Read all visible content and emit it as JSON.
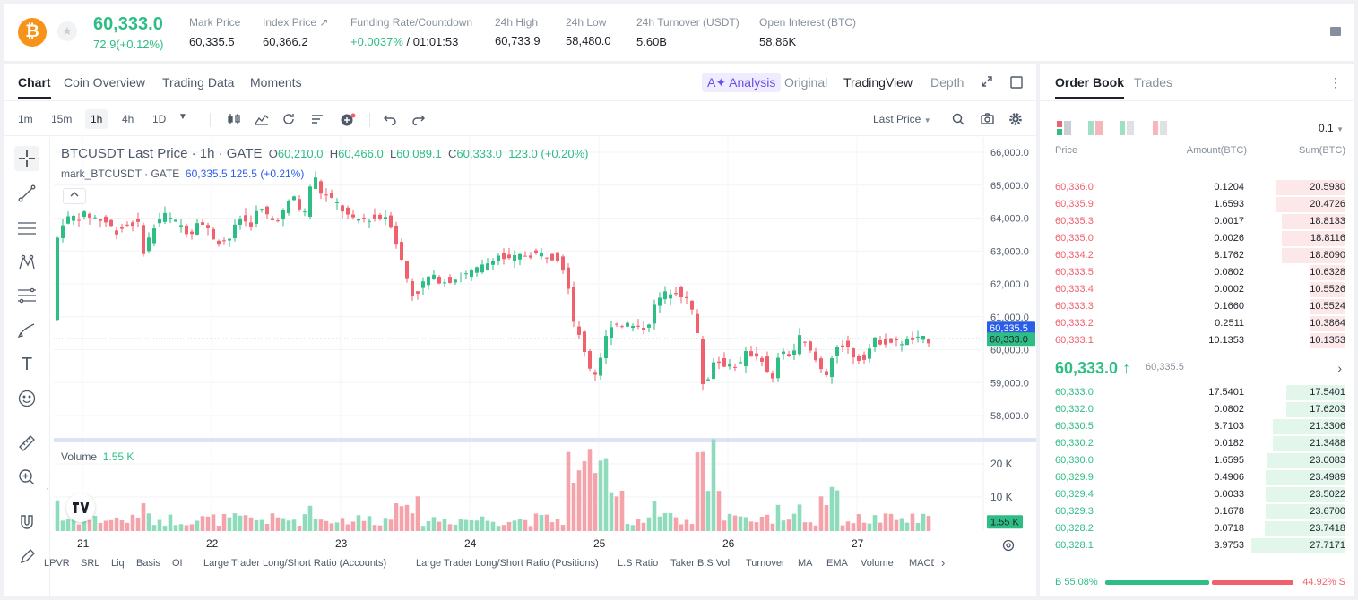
{
  "header": {
    "coin_symbol": "₿",
    "last_price": "60,333.0",
    "change": "72.9(+0.12%)",
    "stats": [
      {
        "label": "Mark Price",
        "value": "60,335.5"
      },
      {
        "label": "Index Price ↗",
        "value": "60,366.2"
      },
      {
        "label": "Funding Rate/Countdown",
        "value_green": "+0.0037%",
        "value": " / 01:01:53"
      },
      {
        "label": "24h High",
        "value": "60,733.9"
      },
      {
        "label": "24h Low",
        "value": "58,480.0"
      },
      {
        "label": "24h Turnover (USDT)",
        "value": "5.60B"
      },
      {
        "label": "Open Interest (BTC)",
        "value": "58.86K"
      }
    ]
  },
  "chart_tabs": [
    "Chart",
    "Coin Overview",
    "Trading Data",
    "Moments"
  ],
  "view_tabs": {
    "ai": "A✦ Analysis",
    "original": "Original",
    "tradingview": "TradingView",
    "depth": "Depth"
  },
  "intervals": [
    "1m",
    "15m",
    "1h",
    "4h",
    "1D"
  ],
  "price_type": "Last Price",
  "legend": {
    "title": "BTCUSDT Last Price · 1h · GATE",
    "o_lbl": "O",
    "o": "60,210.0",
    "h_lbl": "H",
    "h": "60,466.0",
    "l_lbl": "L",
    "l": "60,089.1",
    "c_lbl": "C",
    "c": "60,333.0",
    "chg": "123.0 (+0.20%)",
    "mark_name": "mark_BTCUSDT · GATE",
    "mark_val": "60,335.5  125.5 (+0.21%)"
  },
  "volume_legend": {
    "label": "Volume",
    "value": "1.55 K"
  },
  "price_axis": [
    "66,000.0",
    "65,000.0",
    "64,000.0",
    "63,000.0",
    "62,000.0",
    "61,000.0",
    "60,000.0",
    "59,000.0",
    "58,000.0"
  ],
  "price_tags": {
    "mark": "60,335.5",
    "last": "60,333.0",
    "volume": "1.55 K"
  },
  "volume_axis": [
    "20 K",
    "10 K"
  ],
  "date_axis": [
    "21",
    "22",
    "23",
    "24",
    "25",
    "26",
    "27"
  ],
  "indicators": [
    "LPVR",
    "SRL",
    "Liq",
    "Basis",
    "OI",
    "Large Trader Long/Short Ratio (Accounts)",
    "Large Trader Long/Short Ratio (Positions)",
    "L.S Ratio",
    "Taker B.S Vol.",
    "Turnover",
    "MA",
    "EMA",
    "Volume",
    "MACD"
  ],
  "orderbook": {
    "tabs": [
      "Order Book",
      "Trades"
    ],
    "precision": "0.1",
    "headers": [
      "Price",
      "Amount(BTC)",
      "Sum(BTC)"
    ],
    "asks": [
      {
        "price": "60,336.0",
        "amount": "0.1204",
        "sum": "20.5930",
        "depth": 0.74
      },
      {
        "price": "60,335.9",
        "amount": "1.6593",
        "sum": "20.4726",
        "depth": 0.74
      },
      {
        "price": "60,335.3",
        "amount": "0.0017",
        "sum": "18.8133",
        "depth": 0.68
      },
      {
        "price": "60,335.0",
        "amount": "0.0026",
        "sum": "18.8116",
        "depth": 0.68
      },
      {
        "price": "60,334.2",
        "amount": "8.1762",
        "sum": "18.8090",
        "depth": 0.68
      },
      {
        "price": "60,333.5",
        "amount": "0.0802",
        "sum": "10.6328",
        "depth": 0.38
      },
      {
        "price": "60,333.4",
        "amount": "0.0002",
        "sum": "10.5526",
        "depth": 0.38
      },
      {
        "price": "60,333.3",
        "amount": "0.1660",
        "sum": "10.5524",
        "depth": 0.38
      },
      {
        "price": "60,333.2",
        "amount": "0.2511",
        "sum": "10.3864",
        "depth": 0.37
      },
      {
        "price": "60,333.1",
        "amount": "10.1353",
        "sum": "10.1353",
        "depth": 0.37
      }
    ],
    "mid_price": "60,333.0 ↑",
    "mid_mark": "60,335.5",
    "bids": [
      {
        "price": "60,333.0",
        "amount": "17.5401",
        "sum": "17.5401",
        "depth": 0.63
      },
      {
        "price": "60,332.0",
        "amount": "0.0802",
        "sum": "17.6203",
        "depth": 0.63
      },
      {
        "price": "60,330.5",
        "amount": "3.7103",
        "sum": "21.3306",
        "depth": 0.77
      },
      {
        "price": "60,330.2",
        "amount": "0.0182",
        "sum": "21.3488",
        "depth": 0.77
      },
      {
        "price": "60,330.0",
        "amount": "1.6595",
        "sum": "23.0083",
        "depth": 0.83
      },
      {
        "price": "60,329.9",
        "amount": "0.4906",
        "sum": "23.4989",
        "depth": 0.85
      },
      {
        "price": "60,329.4",
        "amount": "0.0033",
        "sum": "23.5022",
        "depth": 0.85
      },
      {
        "price": "60,329.3",
        "amount": "0.1678",
        "sum": "23.6700",
        "depth": 0.85
      },
      {
        "price": "60,328.2",
        "amount": "0.0718",
        "sum": "23.7418",
        "depth": 0.86
      },
      {
        "price": "60,328.1",
        "amount": "3.9753",
        "sum": "27.7171",
        "depth": 1.0
      }
    ],
    "buy_ratio": "B 55.08%",
    "sell_ratio": "44.92% S",
    "buy_fraction": 0.5508
  },
  "colors": {
    "up": "#2ebd85",
    "down": "#f0616d",
    "mark": "#2b5ee8"
  }
}
